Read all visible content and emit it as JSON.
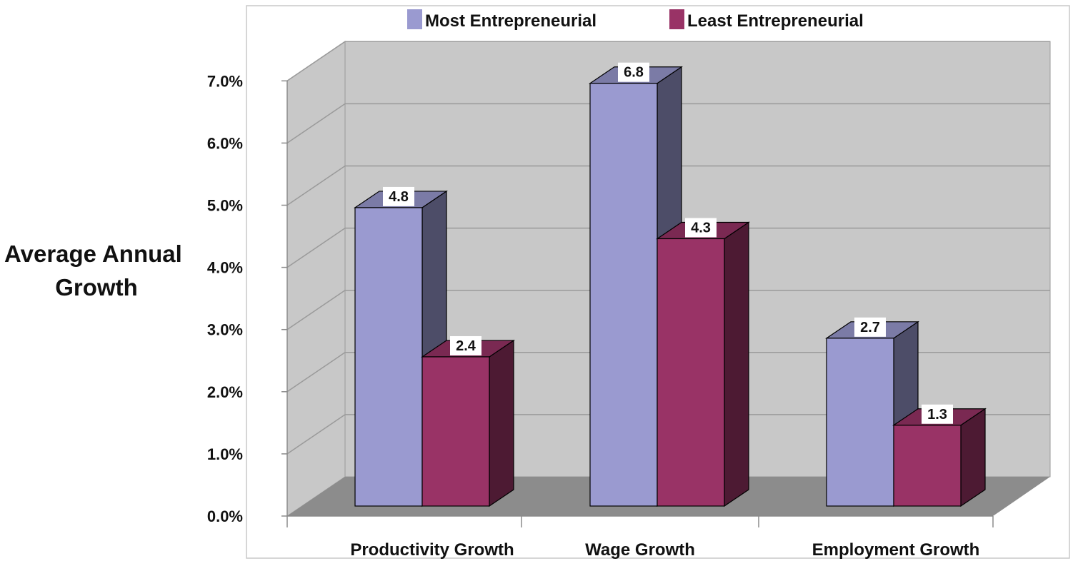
{
  "chart_data": {
    "type": "bar",
    "title": "",
    "xlabel": "",
    "ylabel": "Average Annual Growth",
    "ylabel_lines": [
      "Average Annual",
      "Growth"
    ],
    "categories": [
      "Productivity Growth",
      "Wage Growth",
      "Employment Growth"
    ],
    "series": [
      {
        "name": "Most Entrepreneurial",
        "values": [
          4.8,
          6.8,
          2.7
        ],
        "color": "#9a9ad0"
      },
      {
        "name": "Least Entrepreneurial",
        "values": [
          2.4,
          4.3,
          1.3
        ],
        "color": "#993366"
      }
    ],
    "data_labels": [
      [
        "4.8",
        "6.8",
        "2.7"
      ],
      [
        "2.4",
        "4.3",
        "1.3"
      ]
    ],
    "ylim": [
      0,
      7
    ],
    "yticks": [
      0,
      1,
      2,
      3,
      4,
      5,
      6,
      7
    ],
    "ytick_labels": [
      "0.0%",
      "1.0%",
      "2.0%",
      "3.0%",
      "4.0%",
      "5.0%",
      "6.0%",
      "7.0%"
    ],
    "grid": true,
    "legend_position": "top",
    "style": "3d-clustered-column"
  }
}
